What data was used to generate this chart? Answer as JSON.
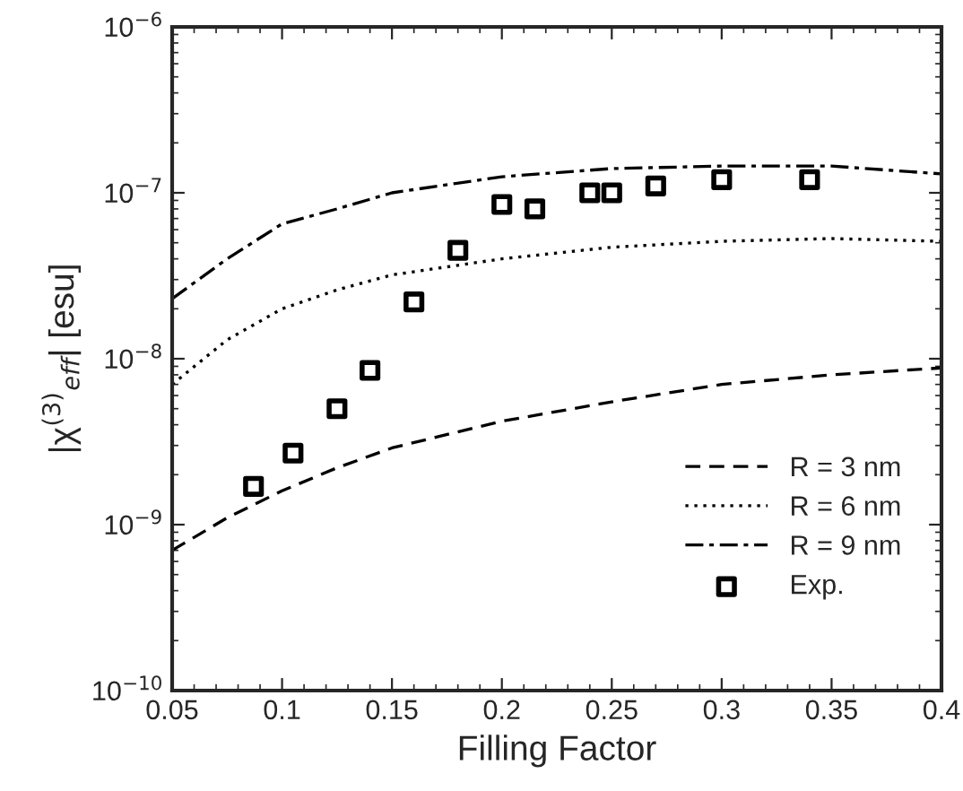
{
  "chart_data": {
    "type": "line",
    "xlabel": "Filling Factor",
    "ylabel": "|χ$^{(3)}$$_{eff}$| [esu]",
    "log": "y",
    "xlim": [
      0.05,
      0.4
    ],
    "ylim": [
      1e-10,
      1e-06
    ],
    "xticks": [
      0.05,
      0.1,
      0.15,
      0.2,
      0.25,
      0.3,
      0.35,
      0.4
    ],
    "yticks": [
      {
        "value": 1e-10,
        "label": "10$^{−10}$"
      },
      {
        "value": 1e-09,
        "label": "10$^{−9}$"
      },
      {
        "value": 1e-08,
        "label": "10$^{−8}$"
      },
      {
        "value": 1e-07,
        "label": "10$^{−7}$"
      },
      {
        "value": 1e-06,
        "label": "10$^{−6}$"
      }
    ],
    "legend": "bottom right",
    "grid": false,
    "series": [
      {
        "name": "R = 3 nm",
        "line_style": "dashed",
        "color": "#000000",
        "x": [
          0.05,
          0.075,
          0.1,
          0.125,
          0.15,
          0.2,
          0.25,
          0.3,
          0.35,
          0.4
        ],
        "values": [
          7e-10,
          1.1e-09,
          1.6e-09,
          2.2e-09,
          2.9e-09,
          4.2e-09,
          5.5e-09,
          7e-09,
          8e-09,
          8.8e-09
        ]
      },
      {
        "name": "R = 6 nm",
        "line_style": "dotted",
        "color": "#000000",
        "x": [
          0.05,
          0.075,
          0.1,
          0.125,
          0.15,
          0.2,
          0.25,
          0.3,
          0.35,
          0.4
        ],
        "values": [
          7e-09,
          1.3e-08,
          2e-08,
          2.6e-08,
          3.2e-08,
          4e-08,
          4.7e-08,
          5.1e-08,
          5.3e-08,
          5.1e-08
        ]
      },
      {
        "name": "R = 9 nm",
        "line_style": "dashdot",
        "color": "#000000",
        "x": [
          0.05,
          0.075,
          0.1,
          0.125,
          0.15,
          0.2,
          0.25,
          0.3,
          0.35,
          0.4
        ],
        "values": [
          2.3e-08,
          4e-08,
          6.5e-08,
          8e-08,
          1e-07,
          1.25e-07,
          1.4e-07,
          1.45e-07,
          1.45e-07,
          1.3e-07
        ]
      },
      {
        "name": "Exp.",
        "type": "scatter",
        "marker": "square",
        "color": "#000000",
        "x": [
          0.087,
          0.105,
          0.125,
          0.14,
          0.16,
          0.18,
          0.2,
          0.215,
          0.24,
          0.25,
          0.27,
          0.3,
          0.34
        ],
        "values": [
          1.7e-09,
          2.7e-09,
          5e-09,
          8.5e-09,
          2.2e-08,
          4.5e-08,
          8.5e-08,
          8e-08,
          1e-07,
          1e-07,
          1.1e-07,
          1.2e-07,
          1.2e-07
        ]
      }
    ]
  }
}
